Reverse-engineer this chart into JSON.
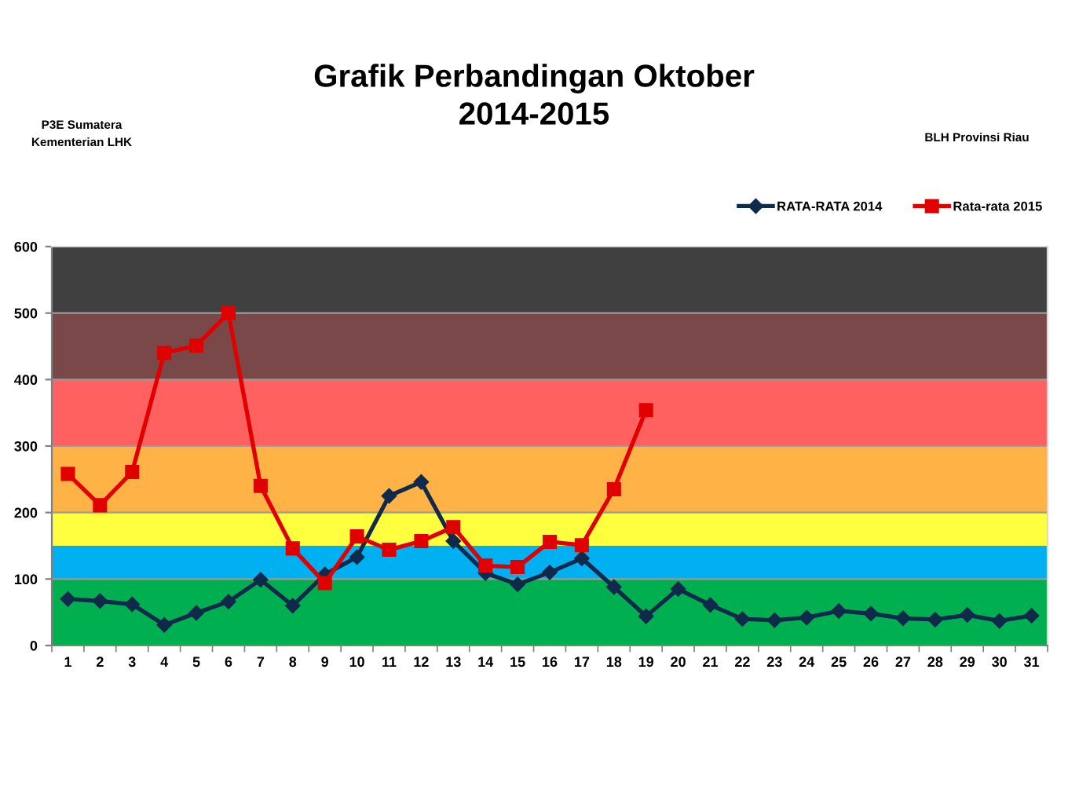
{
  "chart_data": {
    "type": "line",
    "title": "Grafik Perbandingan Oktober\n2014-2015",
    "annotations": [
      "P3E Sumatera",
      "Kementerian LHK",
      "BLH Provinsi Riau"
    ],
    "categories": [
      "1",
      "2",
      "3",
      "4",
      "5",
      "6",
      "7",
      "8",
      "9",
      "10",
      "11",
      "12",
      "13",
      "14",
      "15",
      "16",
      "17",
      "18",
      "19",
      "20",
      "21",
      "22",
      "23",
      "24",
      "25",
      "26",
      "27",
      "28",
      "29",
      "30",
      "31"
    ],
    "series": [
      {
        "name": "RATA-RATA 2014",
        "color": "#0f2a4a",
        "marker": "diamond",
        "values": [
          70,
          67,
          62,
          31,
          49,
          66,
          99,
          60,
          107,
          133,
          225,
          246,
          157,
          109,
          92,
          110,
          131,
          88,
          44,
          85,
          61,
          40,
          38,
          42,
          52,
          48,
          41,
          39,
          46,
          37,
          45
        ]
      },
      {
        "name": "Rata-rata 2015",
        "color": "#e00000",
        "marker": "square",
        "values": [
          258,
          211,
          261,
          440,
          451,
          500,
          240,
          146,
          94,
          164,
          144,
          157,
          178,
          120,
          118,
          156,
          151,
          235,
          354,
          null,
          null,
          null,
          null,
          null,
          null,
          null,
          null,
          null,
          null,
          null,
          null
        ]
      }
    ],
    "ylim": [
      0,
      600
    ],
    "yticks": [
      0,
      100,
      200,
      300,
      400,
      500,
      600
    ],
    "grid": "y",
    "legend": "top right",
    "bands": [
      {
        "axis": "y",
        "from": 0,
        "to": 100,
        "color": "#00b050"
      },
      {
        "axis": "y",
        "from": 100,
        "to": 150,
        "color": "#00b0f0"
      },
      {
        "axis": "y",
        "from": 150,
        "to": 200,
        "color": "#ffff40"
      },
      {
        "axis": "y",
        "from": 200,
        "to": 300,
        "color": "#ffb347"
      },
      {
        "axis": "y",
        "from": 300,
        "to": 400,
        "color": "#ff6060"
      },
      {
        "axis": "y",
        "from": 400,
        "to": 500,
        "color": "#7a4848"
      },
      {
        "axis": "y",
        "from": 500,
        "to": 600,
        "color": "#404040"
      }
    ]
  }
}
